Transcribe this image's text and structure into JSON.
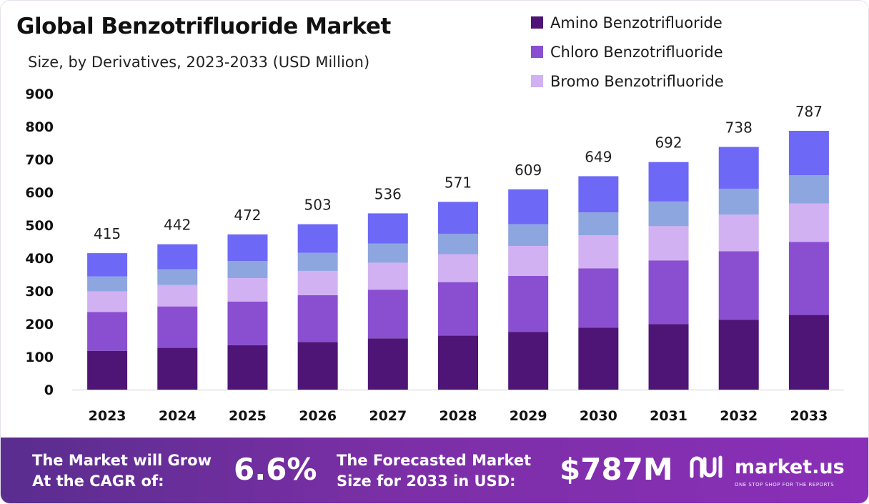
{
  "header": {
    "title": "Global Benzotrifluoride Market",
    "subtitle": "Size, by Derivatives, 2023-2033 (USD Million)"
  },
  "legend": {
    "items": [
      {
        "label": "Amino Benzotrifluoride",
        "color": "#4e1577"
      },
      {
        "label": "Chloro Benzotrifluoride",
        "color": "#8a4fd0"
      },
      {
        "label": "Bromo Benzotrifluoride",
        "color": "#d2b1f2"
      }
    ]
  },
  "chart_data": {
    "type": "bar",
    "stacked": true,
    "categories": [
      "2023",
      "2024",
      "2025",
      "2026",
      "2027",
      "2028",
      "2029",
      "2030",
      "2031",
      "2032",
      "2033"
    ],
    "yticks": [
      "0",
      "100",
      "200",
      "300",
      "400",
      "500",
      "600",
      "700",
      "800",
      "900"
    ],
    "ylim": [
      0,
      900
    ],
    "totals": [
      415,
      442,
      472,
      503,
      536,
      571,
      609,
      649,
      692,
      738,
      787
    ],
    "total_labels": [
      "415",
      "442",
      "472",
      "503",
      "536",
      "571",
      "609",
      "649",
      "692",
      "738",
      "787"
    ],
    "series": [
      {
        "name": "Amino Benzotrifluoride",
        "color": "#4e1577",
        "values": [
          118,
          127,
          135,
          145,
          156,
          164,
          175,
          188,
          199,
          212,
          227
        ]
      },
      {
        "name": "Chloro Benzotrifluoride",
        "color": "#8a4fd0",
        "values": [
          118,
          126,
          133,
          142,
          148,
          163,
          171,
          181,
          194,
          209,
          222
        ]
      },
      {
        "name": "Bromo Benzotrifluoride",
        "color": "#d2b1f2",
        "values": [
          63,
          65,
          71,
          74,
          82,
          85,
          91,
          100,
          104,
          111,
          117
        ]
      },
      {
        "color": "#8ea6df",
        "values": [
          45,
          48,
          52,
          55,
          58,
          62,
          66,
          70,
          75,
          79,
          86
        ]
      },
      {
        "color": "#6e68f6",
        "values": [
          71,
          76,
          81,
          87,
          92,
          97,
          106,
          110,
          120,
          127,
          135
        ]
      }
    ],
    "grid": false,
    "legend_position": "top-right"
  },
  "banner": {
    "cagr_label_line1": "The Market will Grow",
    "cagr_label_line2": "At the CAGR of:",
    "cagr_value": "6.6%",
    "forecast_label_line1": "The Forecasted Market",
    "forecast_label_line2": "Size for 2033 in USD:",
    "forecast_value": "$787M",
    "brand_name": "market.us",
    "brand_tagline": "ONE STOP SHOP FOR THE REPORTS",
    "brand_logo_icon": "market-us-logo-icon"
  }
}
